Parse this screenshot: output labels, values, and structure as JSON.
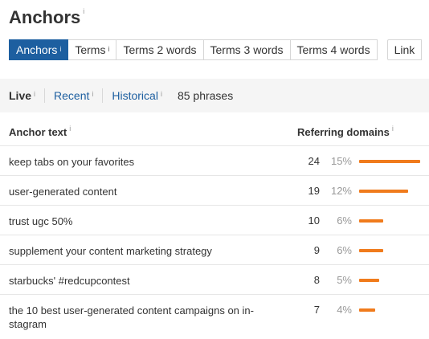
{
  "page": {
    "title": "Anchors",
    "title_info": "i"
  },
  "tabs": [
    {
      "label": "Anchors",
      "info": "i",
      "active": true
    },
    {
      "label": "Terms",
      "info": "i",
      "active": false
    },
    {
      "label": "Terms 2 words",
      "info": "",
      "active": false
    },
    {
      "label": "Terms 3 words",
      "info": "",
      "active": false
    },
    {
      "label": "Terms 4 words",
      "info": "",
      "active": false
    },
    {
      "label": "Link",
      "info": "",
      "active": false
    }
  ],
  "toolbar": {
    "live_label": "Live",
    "live_info": "i",
    "recent_label": "Recent",
    "recent_info": "i",
    "historical_label": "Historical",
    "historical_info": "i",
    "phrase_count": "85 phrases"
  },
  "table": {
    "col_anchor": "Anchor text",
    "col_anchor_info": "i",
    "col_ref": "Referring domains",
    "col_ref_info": "i",
    "bar_color": "#f07b1c",
    "rows": [
      {
        "anchor": "keep tabs on your favorites",
        "count": "24",
        "pct": "15%",
        "share": 0.15
      },
      {
        "anchor": "user-generated content",
        "count": "19",
        "pct": "12%",
        "share": 0.12
      },
      {
        "anchor": "trust ugc 50%",
        "count": "10",
        "pct": "6%",
        "share": 0.06
      },
      {
        "anchor": "supplement your content marketing strategy",
        "count": "9",
        "pct": "6%",
        "share": 0.06
      },
      {
        "anchor": "starbucks' #redcupcontest",
        "count": "8",
        "pct": "5%",
        "share": 0.05
      },
      {
        "anchor": "the 10 best user-generated content campaigns on in-stagram",
        "count": "7",
        "pct": "4%",
        "share": 0.04
      }
    ]
  },
  "colors": {
    "accent": "#1d5fa0",
    "bar": "#f07b1c"
  }
}
